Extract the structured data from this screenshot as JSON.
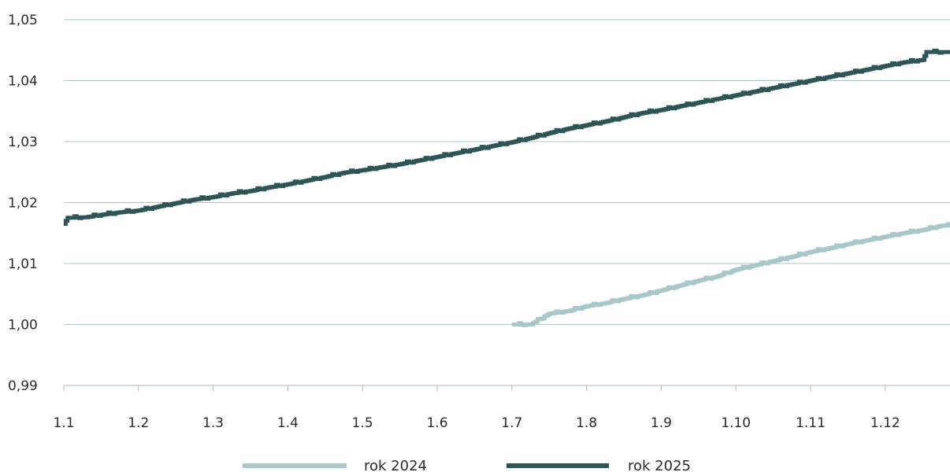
{
  "chart_data": {
    "type": "line",
    "title": "",
    "xlabel": "",
    "ylabel": "",
    "ylim": [
      0.99,
      1.05
    ],
    "yticks": [
      "0,99",
      "1,00",
      "1,01",
      "1,02",
      "1,03",
      "1,04",
      "1,05"
    ],
    "xticks": [
      "1.1",
      "1.2",
      "1.3",
      "1.4",
      "1.5",
      "1.6",
      "1.7",
      "1.8",
      "1.9",
      "1.10",
      "1.11",
      "1.12"
    ],
    "grid": "horizontal",
    "legend_position": "bottom",
    "series": [
      {
        "name": "rok 2024",
        "color": "#a9c7c9",
        "x": [
          6.0,
          6.25,
          6.5,
          6.75,
          7.0,
          7.25,
          7.5,
          7.75,
          8.0,
          8.25,
          8.5,
          8.75,
          9.0,
          9.25,
          9.5,
          9.75,
          10.0,
          10.25,
          10.5,
          10.75,
          11.0,
          11.25,
          11.5,
          11.75,
          11.9
        ],
        "y": [
          1.0,
          1.0,
          1.0018,
          1.0022,
          1.003,
          1.0035,
          1.0042,
          1.0048,
          1.0056,
          1.0064,
          1.0072,
          1.0079,
          1.009,
          1.0097,
          1.0104,
          1.0111,
          1.0119,
          1.0125,
          1.0132,
          1.0138,
          1.0144,
          1.015,
          1.0155,
          1.0162,
          1.0163
        ]
      },
      {
        "name": "rok 2025",
        "color": "#2f5457",
        "x": [
          0.0,
          0.05,
          0.3,
          0.5,
          0.75,
          1.0,
          1.25,
          1.5,
          1.75,
          2.0,
          2.25,
          2.5,
          2.75,
          3.0,
          3.25,
          3.5,
          3.75,
          4.0,
          4.25,
          4.5,
          4.75,
          5.0,
          5.25,
          5.5,
          5.75,
          6.0,
          6.25,
          6.5,
          6.75,
          7.0,
          7.25,
          7.5,
          7.75,
          8.0,
          8.25,
          8.5,
          8.75,
          9.0,
          9.25,
          9.5,
          9.75,
          10.0,
          10.25,
          10.5,
          10.75,
          11.0,
          11.25,
          11.5,
          11.55,
          11.9
        ],
        "y": [
          1.0165,
          1.0175,
          1.0176,
          1.018,
          1.0184,
          1.0187,
          1.0193,
          1.0199,
          1.0205,
          1.0209,
          1.0215,
          1.0219,
          1.0225,
          1.023,
          1.0236,
          1.0242,
          1.0249,
          1.0253,
          1.0258,
          1.0263,
          1.0269,
          1.0275,
          1.0281,
          1.0287,
          1.0293,
          1.0299,
          1.0306,
          1.0314,
          1.0321,
          1.0327,
          1.0333,
          1.034,
          1.0347,
          1.0352,
          1.0358,
          1.0364,
          1.037,
          1.0376,
          1.0382,
          1.0388,
          1.0394,
          1.04,
          1.0406,
          1.0412,
          1.0418,
          1.0424,
          1.043,
          1.0434,
          1.0447,
          1.0447
        ]
      }
    ]
  }
}
